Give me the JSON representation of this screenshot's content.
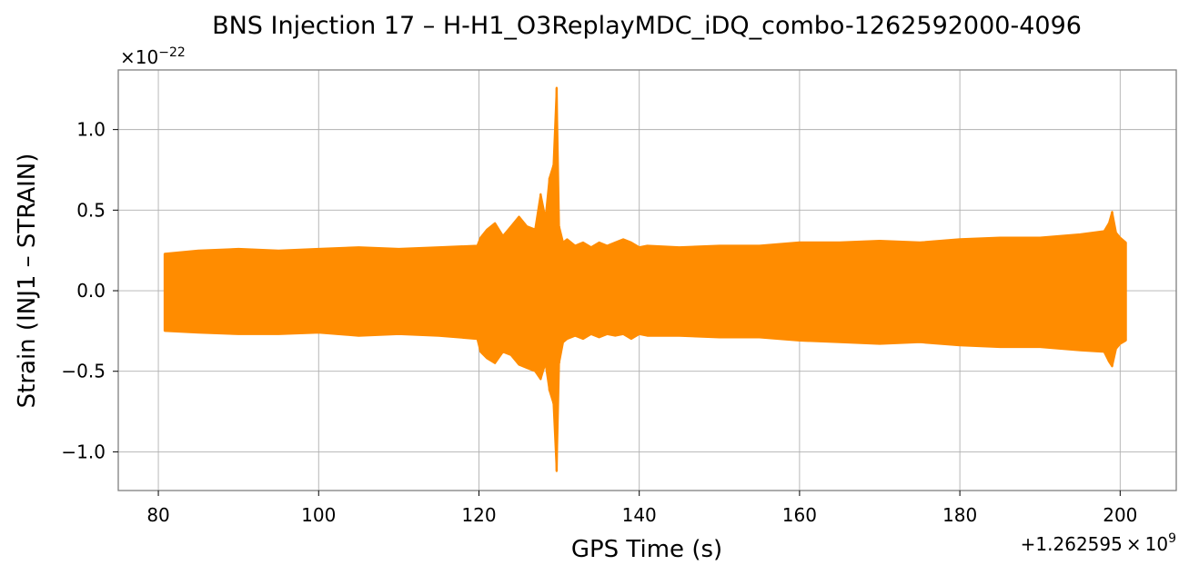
{
  "chart_data": {
    "type": "line",
    "title": "BNS Injection 17 – H-H1_O3ReplayMDC_iDQ_combo-1262592000-4096",
    "xlabel": "GPS Time (s)",
    "ylabel": "Strain (INJ1 – STRAIN)",
    "x_offset_label_prefix": "+1.262595",
    "x_offset_label_times": "×",
    "x_offset_label_base": "10",
    "x_offset_label_exp": "9",
    "y_scale_label_prefix": "×10",
    "y_scale_label_exp": "−22",
    "xlim": [
      75,
      207
    ],
    "ylim": [
      -1.24,
      1.37
    ],
    "xticks": [
      80,
      100,
      120,
      140,
      160,
      180,
      200
    ],
    "xtick_labels": [
      "80",
      "100",
      "120",
      "140",
      "160",
      "180",
      "200"
    ],
    "yticks": [
      -1.0,
      -0.5,
      0.0,
      0.5,
      1.0
    ],
    "ytick_labels": [
      "−1.0",
      "−0.5",
      "0.0",
      "0.5",
      "1.0"
    ],
    "grid": true,
    "line_color": "#ff8c00",
    "series": [
      {
        "x": [
          80.8,
          85,
          90,
          95,
          100,
          105,
          110,
          115,
          119.8,
          120.2,
          121,
          122,
          123,
          124,
          125,
          126,
          127,
          127.7,
          128.3,
          128.8,
          129.3,
          129.7,
          130.0,
          130.5,
          131,
          132,
          133,
          134,
          135,
          136,
          137,
          138,
          139,
          140,
          141,
          145,
          150,
          155,
          160,
          165,
          170,
          175,
          180,
          185,
          190,
          195,
          198.0,
          198.6,
          199.0,
          199.5,
          200.0,
          200.7
        ],
        "upper": [
          0.23,
          0.25,
          0.26,
          0.25,
          0.26,
          0.27,
          0.26,
          0.27,
          0.28,
          0.33,
          0.38,
          0.42,
          0.34,
          0.4,
          0.46,
          0.4,
          0.38,
          0.6,
          0.45,
          0.7,
          0.78,
          1.26,
          0.4,
          0.3,
          0.32,
          0.28,
          0.3,
          0.27,
          0.3,
          0.28,
          0.3,
          0.32,
          0.3,
          0.27,
          0.28,
          0.27,
          0.28,
          0.28,
          0.3,
          0.3,
          0.31,
          0.3,
          0.32,
          0.33,
          0.33,
          0.35,
          0.37,
          0.42,
          0.49,
          0.36,
          0.33,
          0.3
        ],
        "lower": [
          -0.25,
          -0.26,
          -0.27,
          -0.27,
          -0.26,
          -0.28,
          -0.27,
          -0.28,
          -0.3,
          -0.38,
          -0.42,
          -0.45,
          -0.38,
          -0.4,
          -0.46,
          -0.48,
          -0.5,
          -0.55,
          -0.45,
          -0.62,
          -0.7,
          -1.12,
          -0.45,
          -0.32,
          -0.3,
          -0.28,
          -0.3,
          -0.27,
          -0.29,
          -0.27,
          -0.28,
          -0.27,
          -0.3,
          -0.27,
          -0.28,
          -0.28,
          -0.29,
          -0.29,
          -0.31,
          -0.32,
          -0.33,
          -0.32,
          -0.34,
          -0.35,
          -0.35,
          -0.37,
          -0.38,
          -0.44,
          -0.47,
          -0.36,
          -0.33,
          -0.31
        ]
      }
    ]
  }
}
